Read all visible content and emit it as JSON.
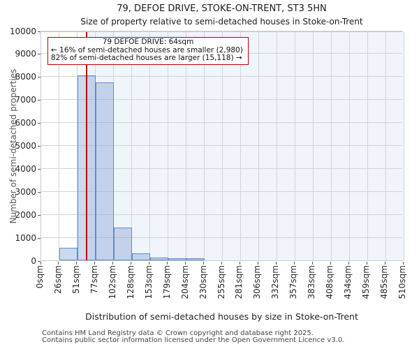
{
  "title": "79, DEFOE DRIVE, STOKE-ON-TRENT, ST3 5HN",
  "subtitle": "Size of property relative to semi-detached houses in Stoke-on-Trent",
  "annotation": {
    "title": "79 DEFOE DRIVE: 64sqm",
    "smaller": "← 16% of semi-detached houses are smaller (2,980)",
    "larger": "82% of semi-detached houses are larger (15,118) →"
  },
  "footer": {
    "line1": "Contains HM Land Registry data © Crown copyright and database right 2025.",
    "line2": "Contains public sector information licensed under the Open Government Licence v3.0."
  },
  "colors": {
    "bar_fill": "rgba(120,155,208,0.38)",
    "bar_border": "#5f8dca",
    "marker_line": "#c00000",
    "annotation_border": "#c00000",
    "shade_right_of_marker": "#f0f4fb",
    "gridline": "#d4d4d8",
    "spine": "#c6c9ce"
  },
  "chart_data": {
    "type": "bar",
    "title": "79, DEFOE DRIVE, STOKE-ON-TRENT, ST3 5HN",
    "subtitle": "Size of property relative to semi-detached houses in Stoke-on-Trent",
    "xlabel": "Distribution of semi-detached houses by size in Stoke-on-Trent",
    "ylabel": "Number of semi-detached properties",
    "ylim": [
      0,
      10000
    ],
    "y_ticks": [
      0,
      1000,
      2000,
      3000,
      4000,
      5000,
      6000,
      7000,
      8000,
      9000,
      10000
    ],
    "grid": true,
    "legend": false,
    "bin_edges_sqm": [
      0,
      26,
      51,
      77,
      102,
      128,
      153,
      179,
      204,
      230,
      255,
      281,
      306,
      332,
      357,
      383,
      408,
      434,
      459,
      485,
      510
    ],
    "x_tick_labels": [
      "0sqm",
      "26sqm",
      "51sqm",
      "77sqm",
      "102sqm",
      "128sqm",
      "153sqm",
      "179sqm",
      "204sqm",
      "230sqm",
      "255sqm",
      "281sqm",
      "306sqm",
      "332sqm",
      "357sqm",
      "383sqm",
      "408sqm",
      "434sqm",
      "459sqm",
      "485sqm",
      "510sqm"
    ],
    "values": [
      0,
      550,
      8050,
      7750,
      1430,
      290,
      130,
      70,
      30,
      0,
      0,
      0,
      0,
      0,
      0,
      0,
      0,
      0,
      0,
      0
    ],
    "marker": {
      "value_sqm": 64,
      "percent_smaller": 16,
      "count_smaller": 2980,
      "percent_larger": 82,
      "count_larger": 15118
    }
  }
}
